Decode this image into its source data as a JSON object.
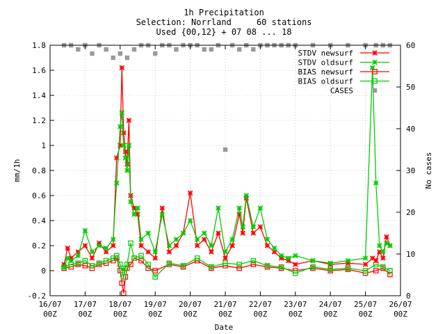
{
  "chart_data": {
    "type": "line",
    "title": "1h Precipitation",
    "subtitle1": "Selection: Norrland     60 stations",
    "subtitle2": "Used {00,12} + 07 08 ... 18",
    "xlabel": "Date",
    "ylabel": "mm/1h",
    "y2label": "No cases",
    "ylim": [
      -0.2,
      1.8
    ],
    "y2lim": [
      0,
      60
    ],
    "xlim_days": [
      0,
      10
    ],
    "grid": true,
    "legend_position": "top-right",
    "x_ticks": [
      {
        "date": "16/07",
        "hour": "00Z"
      },
      {
        "date": "17/07",
        "hour": "00Z"
      },
      {
        "date": "18/07",
        "hour": "00Z"
      },
      {
        "date": "19/07",
        "hour": "00Z"
      },
      {
        "date": "20/07",
        "hour": "00Z"
      },
      {
        "date": "21/07",
        "hour": "00Z"
      },
      {
        "date": "22/07",
        "hour": "00Z"
      },
      {
        "date": "23/07",
        "hour": "00Z"
      },
      {
        "date": "24/07",
        "hour": "00Z"
      },
      {
        "date": "25/07",
        "hour": "00Z"
      },
      {
        "date": "26/07",
        "hour": "00Z"
      }
    ],
    "y_ticks": [
      "-0.2",
      "0",
      "0.2",
      "0.4",
      "0.6",
      "0.8",
      "1",
      "1.2",
      "1.4",
      "1.6",
      "1.8"
    ],
    "y2_ticks": [
      "0",
      "10",
      "20",
      "30",
      "40",
      "50",
      "60"
    ],
    "series": [
      {
        "name": "STDV newsurf",
        "color": "#ff0000",
        "marker": "x",
        "x": [
          0.4,
          0.5,
          0.6,
          0.8,
          1.0,
          1.2,
          1.4,
          1.6,
          1.8,
          1.9,
          2.0,
          2.05,
          2.1,
          2.15,
          2.2,
          2.25,
          2.3,
          2.4,
          2.5,
          2.6,
          2.8,
          3.0,
          3.2,
          3.4,
          3.6,
          3.8,
          4.0,
          4.2,
          4.4,
          4.6,
          4.8,
          5.0,
          5.2,
          5.4,
          5.5,
          5.6,
          5.8,
          6.0,
          6.2,
          6.4,
          6.6,
          6.8,
          7.0,
          7.5,
          8.0,
          8.5,
          9.0,
          9.2,
          9.3,
          9.4,
          9.5,
          9.6,
          9.7
        ],
        "y": [
          0.05,
          0.18,
          0.1,
          0.15,
          0.2,
          0.1,
          0.22,
          0.15,
          0.2,
          0.9,
          1.0,
          1.62,
          1.1,
          0.95,
          0.85,
          1.2,
          0.6,
          0.5,
          0.45,
          0.2,
          0.15,
          0.1,
          0.5,
          0.15,
          0.2,
          0.3,
          0.62,
          0.2,
          0.25,
          0.15,
          0.3,
          0.1,
          0.2,
          0.45,
          0.3,
          0.58,
          0.3,
          0.35,
          0.2,
          0.15,
          0.1,
          0.08,
          0.05,
          0.08,
          0.05,
          0.06,
          0.05,
          0.1,
          0.08,
          0.15,
          0.1,
          0.27,
          0.2
        ]
      },
      {
        "name": "STDV oldsurf",
        "color": "#00cc00",
        "marker": "x",
        "x": [
          0.4,
          0.5,
          0.6,
          0.8,
          1.0,
          1.2,
          1.4,
          1.6,
          1.8,
          1.9,
          2.0,
          2.05,
          2.1,
          2.15,
          2.2,
          2.25,
          2.3,
          2.4,
          2.5,
          2.6,
          2.8,
          3.0,
          3.2,
          3.4,
          3.6,
          3.8,
          4.0,
          4.2,
          4.4,
          4.6,
          4.8,
          5.0,
          5.2,
          5.4,
          5.5,
          5.6,
          5.8,
          6.0,
          6.2,
          6.4,
          6.6,
          6.8,
          7.0,
          7.5,
          8.0,
          8.5,
          9.0,
          9.2,
          9.3,
          9.4,
          9.5,
          9.6,
          9.7
        ],
        "y": [
          0.03,
          0.1,
          0.08,
          0.12,
          0.32,
          0.15,
          0.2,
          0.18,
          0.25,
          0.7,
          1.15,
          1.26,
          1.0,
          0.9,
          0.8,
          1.0,
          0.55,
          0.45,
          0.5,
          0.25,
          0.3,
          0.15,
          0.45,
          0.2,
          0.25,
          0.3,
          0.4,
          0.25,
          0.3,
          0.2,
          0.5,
          0.15,
          0.25,
          0.5,
          0.35,
          0.6,
          0.35,
          0.5,
          0.25,
          0.18,
          0.12,
          0.1,
          0.12,
          0.08,
          0.06,
          0.08,
          0.1,
          1.62,
          0.7,
          0.2,
          0.15,
          0.22,
          0.2
        ]
      },
      {
        "name": "BIAS newsurf",
        "color": "#ff0000",
        "marker": "square",
        "x": [
          0.4,
          0.6,
          0.8,
          1.0,
          1.2,
          1.4,
          1.6,
          1.8,
          1.9,
          2.0,
          2.05,
          2.1,
          2.15,
          2.2,
          2.3,
          2.4,
          2.6,
          2.8,
          3.0,
          3.4,
          3.8,
          4.2,
          4.6,
          5.0,
          5.4,
          5.8,
          6.2,
          6.6,
          7.0,
          7.5,
          8.0,
          8.5,
          9.0,
          9.3,
          9.5,
          9.7
        ],
        "y": [
          0.02,
          0.03,
          0.05,
          0.04,
          0.02,
          0.05,
          0.06,
          0.08,
          0.1,
          0.0,
          -0.1,
          -0.18,
          -0.05,
          0.02,
          0.05,
          0.1,
          0.08,
          0.02,
          0.0,
          0.05,
          0.03,
          0.08,
          0.02,
          0.04,
          0.02,
          0.05,
          0.03,
          0.02,
          0.0,
          0.02,
          0.0,
          0.01,
          -0.02,
          0.0,
          0.02,
          -0.03
        ]
      },
      {
        "name": "BIAS oldsurf",
        "color": "#00cc00",
        "marker": "square",
        "x": [
          0.4,
          0.6,
          0.8,
          1.0,
          1.2,
          1.4,
          1.6,
          1.8,
          1.9,
          2.0,
          2.05,
          2.1,
          2.15,
          2.2,
          2.3,
          2.4,
          2.6,
          2.8,
          3.0,
          3.4,
          3.8,
          4.2,
          4.6,
          5.0,
          5.4,
          5.8,
          6.2,
          6.6,
          7.0,
          7.5,
          8.0,
          8.5,
          9.0,
          9.3,
          9.5,
          9.7
        ],
        "y": [
          0.03,
          0.05,
          0.06,
          0.08,
          0.04,
          0.06,
          0.08,
          0.1,
          0.12,
          0.05,
          0.0,
          -0.05,
          0.02,
          0.05,
          0.22,
          0.1,
          0.12,
          0.05,
          -0.05,
          0.06,
          0.04,
          0.1,
          0.03,
          0.06,
          0.05,
          0.08,
          0.04,
          0.03,
          -0.02,
          0.03,
          0.01,
          0.02,
          0.0,
          0.05,
          0.03,
          0.0
        ]
      },
      {
        "name": "CASES",
        "color": "#999999",
        "marker": "filled-square",
        "axis": "y2",
        "x": [
          0.4,
          0.6,
          0.8,
          1.0,
          1.2,
          1.4,
          1.6,
          1.8,
          2.0,
          2.2,
          2.4,
          2.6,
          2.8,
          3.0,
          3.2,
          3.4,
          3.6,
          3.8,
          4.0,
          4.2,
          4.4,
          4.6,
          4.8,
          5.0,
          5.2,
          5.4,
          5.6,
          5.8,
          6.0,
          6.2,
          6.4,
          6.6,
          6.8,
          7.0,
          7.5,
          8.0,
          8.5,
          9.0,
          9.3,
          9.5,
          9.7
        ],
        "y": [
          60,
          60,
          59,
          60,
          58,
          60,
          59,
          57,
          58,
          57,
          59,
          60,
          60,
          58,
          60,
          60,
          59,
          60,
          60,
          60,
          59,
          59,
          60,
          35,
          60,
          59,
          60,
          59,
          60,
          60,
          60,
          60,
          60,
          60,
          60,
          60,
          60,
          60,
          60,
          60,
          60
        ]
      }
    ]
  }
}
